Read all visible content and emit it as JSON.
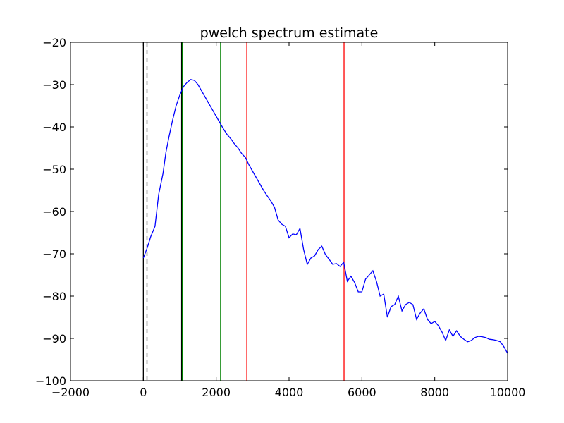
{
  "chart_data": {
    "type": "line",
    "title": "pwelch spectrum estimate",
    "xlabel": "",
    "ylabel": "",
    "xlim": [
      -2000,
      10000
    ],
    "ylim": [
      -100,
      -20
    ],
    "xticks": [
      -2000,
      0,
      2000,
      4000,
      6000,
      8000,
      10000
    ],
    "yticks": [
      -100,
      -90,
      -80,
      -70,
      -60,
      -50,
      -40,
      -30,
      -20
    ],
    "xtick_labels": [
      "−2000",
      "0",
      "2000",
      "4000",
      "6000",
      "8000",
      "10000"
    ],
    "ytick_labels": [
      "−100",
      "−90",
      "−80",
      "−70",
      "−60",
      "−50",
      "−40",
      "−30",
      "−20"
    ],
    "grid": false,
    "legend": "none",
    "series": [
      {
        "color": "#0000ff",
        "x": [
          0,
          110,
          200,
          320,
          420,
          540,
          620,
          700,
          800,
          900,
          1000,
          1100,
          1200,
          1300,
          1400,
          1500,
          1600,
          1700,
          1800,
          1900,
          2000,
          2100,
          2200,
          2300,
          2400,
          2500,
          2600,
          2700,
          2800,
          2900,
          3000,
          3100,
          3200,
          3300,
          3400,
          3500,
          3600,
          3700,
          3800,
          3900,
          4000,
          4100,
          4200,
          4300,
          4400,
          4500,
          4600,
          4700,
          4800,
          4900,
          5000,
          5100,
          5200,
          5300,
          5400,
          5500,
          5600,
          5700,
          5800,
          5900,
          6000,
          6100,
          6200,
          6300,
          6400,
          6500,
          6600,
          6700,
          6800,
          6900,
          7000,
          7100,
          7200,
          7300,
          7400,
          7500,
          7600,
          7700,
          7800,
          7900,
          8000,
          8100,
          8200,
          8300,
          8400,
          8500,
          8600,
          8700,
          8800,
          8900,
          9000,
          9100,
          9200,
          9300,
          9400,
          9500,
          9600,
          9700,
          9800,
          9900,
          10000
        ],
        "y": [
          -71,
          -68.5,
          -66,
          -63.5,
          -56,
          -51,
          -46,
          -42.5,
          -38.5,
          -35,
          -32.5,
          -30.5,
          -29.5,
          -28.8,
          -29,
          -30,
          -31.5,
          -33,
          -34.5,
          -36,
          -37.5,
          -39,
          -40.5,
          -41.8,
          -42.8,
          -44,
          -45,
          -46.3,
          -47.2,
          -49,
          -50.5,
          -52,
          -53.5,
          -55,
          -56.3,
          -57.5,
          -59,
          -62,
          -63,
          -63.5,
          -66.2,
          -65.3,
          -65.5,
          -64,
          -69,
          -72.5,
          -71,
          -70.5,
          -69,
          -68.2,
          -70.2,
          -71.3,
          -72.5,
          -72.3,
          -73,
          -72,
          -76.5,
          -75.3,
          -76.8,
          -79,
          -79,
          -76,
          -75,
          -74,
          -76.5,
          -80,
          -79.5,
          -85,
          -82.5,
          -82,
          -80,
          -83.5,
          -82,
          -81.5,
          -82,
          -85.5,
          -84,
          -83,
          -85.5,
          -86.5,
          -86,
          -87,
          -88.5,
          -90.5,
          -88,
          -89.5,
          -88.2,
          -89.5,
          -90.2,
          -90.8,
          -90.5,
          -89.8,
          -89.5,
          -89.6,
          -89.8,
          -90.2,
          -90.3,
          -90.5,
          -90.8,
          -92,
          -93.5
        ]
      }
    ],
    "vlines": [
      {
        "x": 0,
        "color": "#000000",
        "style": "solid"
      },
      {
        "x": 100,
        "color": "#000000",
        "style": "dashed"
      },
      {
        "x": 1050,
        "color": "#000000",
        "style": "solid"
      },
      {
        "x": 1070,
        "color": "#008000",
        "style": "solid"
      },
      {
        "x": 2120,
        "color": "#008000",
        "style": "solid"
      },
      {
        "x": 2840,
        "color": "#ff0000",
        "style": "solid"
      },
      {
        "x": 5510,
        "color": "#ff0000",
        "style": "solid"
      }
    ]
  }
}
